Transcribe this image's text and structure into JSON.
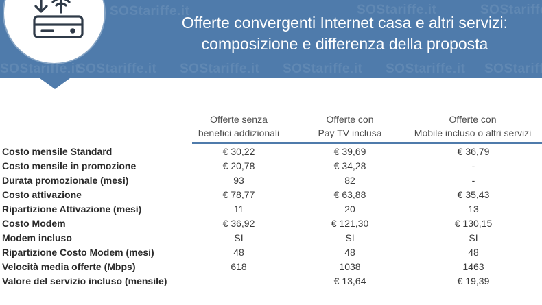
{
  "banner": {
    "title_line1": "Offerte convergenti Internet casa e altri servizi:",
    "title_line2": "composizione e differenza della proposta",
    "watermark_text": "SOStariffe.it",
    "background_color": "#4f7bab",
    "icon": "router-wifi-download-icon"
  },
  "table": {
    "columns": [
      {
        "line1": "Offerte senza",
        "line2": "benefici addizionali"
      },
      {
        "line1": "Offerte con",
        "line2": "Pay TV inclusa"
      },
      {
        "line1": "Offerte  con",
        "line2": "Mobile incluso o altri servizi"
      }
    ],
    "rows": [
      {
        "label": "Costo mensile Standard",
        "values": [
          "€ 30,22",
          "€ 39,69",
          "€ 36,79"
        ]
      },
      {
        "label": "Costo mensile in promozione",
        "values": [
          "€ 20,78",
          "€ 34,28",
          "-"
        ]
      },
      {
        "label": "Durata promozionale (mesi)",
        "values": [
          "93",
          "82",
          "-"
        ]
      },
      {
        "label": "Costo attivazione",
        "values": [
          "€ 78,77",
          "€ 63,88",
          "€ 35,43"
        ]
      },
      {
        "label": "Ripartizione Attivazione (mesi)",
        "values": [
          "11",
          "20",
          "13"
        ]
      },
      {
        "label": "Costo Modem",
        "values": [
          "€ 36,92",
          "€ 121,30",
          "€ 130,15"
        ]
      },
      {
        "label": "Modem incluso",
        "values": [
          "SI",
          "SI",
          "SI"
        ]
      },
      {
        "label": "Ripartizione Costo Modem (mesi)",
        "values": [
          "48",
          "48",
          "48"
        ]
      },
      {
        "label": "Velocità media offerte (Mbps)",
        "values": [
          "618",
          "1038",
          "1463"
        ]
      },
      {
        "label": "Valore del servizio incluso (mensile)",
        "values": [
          "",
          "€ 13,64",
          "€ 19,39"
        ]
      }
    ]
  }
}
